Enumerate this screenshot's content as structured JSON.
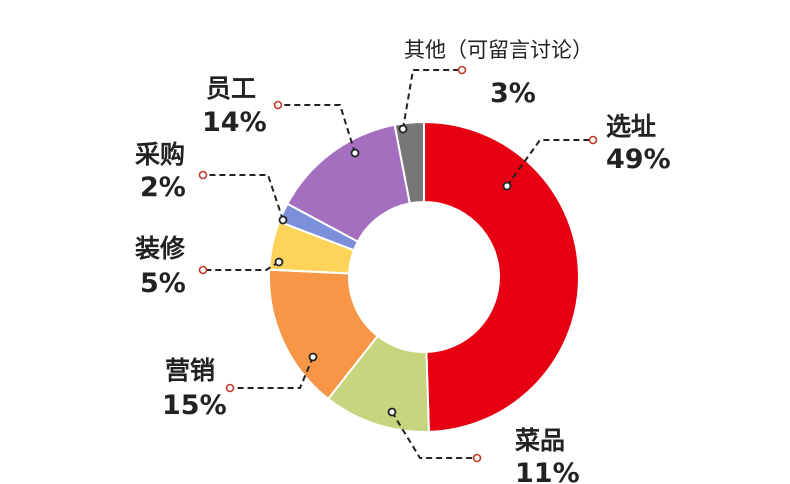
{
  "chart_data": {
    "type": "pie",
    "donut": true,
    "title": "",
    "slices": [
      {
        "label": "选址",
        "value": 49,
        "display": "49%",
        "color": "#e60012"
      },
      {
        "label": "菜品",
        "value": 11,
        "display": "11%",
        "color": "#c6d67e"
      },
      {
        "label": "营销",
        "value": 15,
        "display": "15%",
        "color": "#f79646"
      },
      {
        "label": "装修",
        "value": 5,
        "display": "5%",
        "color": "#fdd35a"
      },
      {
        "label": "采购",
        "value": 2,
        "display": "2%",
        "color": "#7b8fdb"
      },
      {
        "label": "员工",
        "value": 14,
        "display": "14%",
        "color": "#a56fc0"
      },
      {
        "label": "其他（可留言讨论）",
        "value": 3,
        "display": "3%",
        "color": "#777777"
      }
    ],
    "start": "top",
    "direction": "clockwise",
    "legend": "none"
  }
}
